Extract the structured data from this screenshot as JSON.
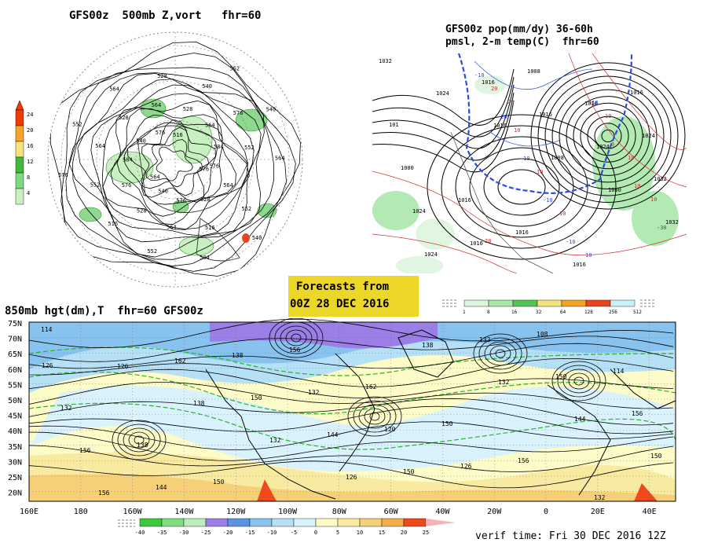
{
  "panel_500mb": {
    "title": "GFS00z  500mb Z,vort   fhr=60",
    "colorbar_labels": [
      "24",
      "20",
      "16",
      "12",
      "8",
      "4"
    ],
    "colorbar_colors": [
      "#f03a00",
      "#f6a42a",
      "#f7e27c",
      "#3fba3f",
      "#7fd97f",
      "#c8f0c0"
    ],
    "contour_labels": [
      "576",
      "564",
      "552",
      "540",
      "528",
      "516",
      "504",
      "576",
      "564",
      "552",
      "540",
      "528",
      "516",
      "564",
      "576",
      "552",
      "576",
      "584",
      "564",
      "552",
      "540",
      "528",
      "564",
      "576",
      "564",
      "528",
      "516",
      "528",
      "540",
      "552",
      "564",
      "576",
      "540",
      "584",
      "552",
      "564",
      "576"
    ]
  },
  "panel_pmsl": {
    "title_line1": "GFS00z pop(mm/dy) 36-60h",
    "title_line2": "pmsl, 2-m temp(C)  fhr=60",
    "contour_labels": [
      "1032",
      "1024",
      "1016",
      "1008",
      "1000",
      "1032",
      "1024",
      "1016",
      "1016",
      "1024",
      "1032",
      "1024",
      "1016",
      "1008",
      "1016",
      "1024",
      "1000",
      "1016",
      "1016",
      "1016",
      "1016",
      "101"
    ],
    "temp_labels": [
      "-10",
      "-20",
      "-10",
      "-10",
      "-10",
      "-10",
      "0",
      "10",
      "-30",
      "20",
      "10",
      "10",
      "10",
      "-10",
      "10",
      "10",
      "10",
      "20",
      "20"
    ],
    "colorbar_labels": [
      "1",
      "8",
      "16",
      "32",
      "64",
      "128",
      "256",
      "512"
    ],
    "colorbar_colors": [
      "#dcf5dc",
      "#a6e6a6",
      "#4fc64f",
      "#f3e27a",
      "#f4a424",
      "#e8461c",
      "#c6f3f7"
    ]
  },
  "banner": {
    "line1": "Forecasts from",
    "line2": "00Z 28 DEC 2016",
    "color": "#ecd728"
  },
  "panel_850mb": {
    "title": "850mb hgt(dm),T  fhr=60 GFS00z",
    "lat_labels": [
      "75N",
      "70N",
      "65N",
      "60N",
      "55N",
      "50N",
      "45N",
      "40N",
      "35N",
      "30N",
      "25N",
      "20N"
    ],
    "lon_labels": [
      "160E",
      "180",
      "160W",
      "140W",
      "120W",
      "100W",
      "80W",
      "60W",
      "40W",
      "20W",
      "0",
      "20E",
      "40E"
    ],
    "contour_labels": [
      "114",
      "126",
      "138",
      "132",
      "126",
      "138",
      "132",
      "144",
      "150",
      "156",
      "162",
      "150",
      "144",
      "150",
      "132",
      "150",
      "156",
      "156",
      "144",
      "138",
      "132",
      "120",
      "126",
      "108",
      "114",
      "132",
      "138",
      "150",
      "156",
      "162",
      "150",
      "156",
      "132",
      "126"
    ],
    "colorbar_labels": [
      "-40",
      "-35",
      "-30",
      "-25",
      "-20",
      "-15",
      "-10",
      "-5",
      "0",
      "5",
      "10",
      "15",
      "20",
      "25"
    ],
    "colorbar_colors": [
      "#3cc93c",
      "#7fdc7f",
      "#bdedb8",
      "#9b7fe6",
      "#5a96e0",
      "#88c2ee",
      "#b6e0f6",
      "#d9f2fb",
      "#fdfbc7",
      "#f8eaa0",
      "#f6d078",
      "#f2ad4a",
      "#ee4a1e"
    ],
    "verif_time": "verif time: Fri 30 DEC 2016 12Z"
  }
}
